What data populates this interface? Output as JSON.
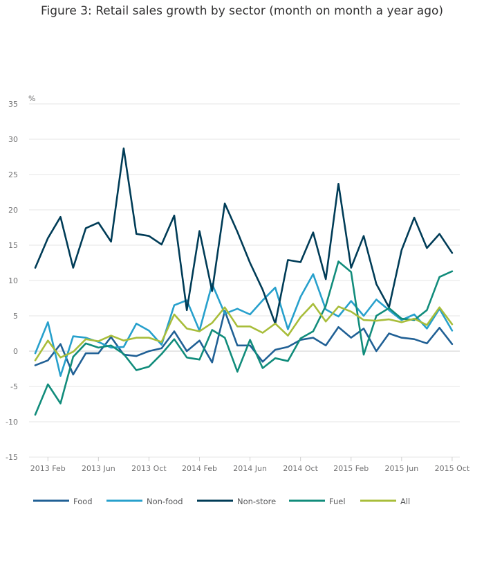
{
  "colors": {
    "Food": "#206095",
    "Non-food": "#27a0cc",
    "Non-store": "#003c57",
    "Fuel": "#118c7b",
    "All": "#a8bd3a",
    "grid": "#e5e5e5",
    "axis": "#cfcfcf"
  },
  "chart_data": {
    "type": "line",
    "title": "Figure 3: Retail sales growth by sector (month on month a year ago)",
    "ylabel": "%",
    "ylim": [
      -15,
      35
    ],
    "yticks": [
      35,
      30,
      25,
      20,
      15,
      10,
      5,
      0,
      -5,
      -10,
      -15
    ],
    "ytick_labels": [
      "35",
      "30",
      "25",
      "20",
      "15",
      "10",
      "5",
      "0",
      "-5",
      "-10",
      "-15"
    ],
    "x": [
      "2013 Jan",
      "2013 Feb",
      "2013 Mar",
      "2013 Apr",
      "2013 May",
      "2013 Jun",
      "2013 Jul",
      "2013 Aug",
      "2013 Sep",
      "2013 Oct",
      "2013 Nov",
      "2013 Dec",
      "2014 Jan",
      "2014 Feb",
      "2014 Mar",
      "2014 Apr",
      "2014 May",
      "2014 Jun",
      "2014 Jul",
      "2014 Aug",
      "2014 Sep",
      "2014 Oct",
      "2014 Nov",
      "2014 Dec",
      "2015 Jan",
      "2015 Feb",
      "2015 Mar",
      "2015 Apr",
      "2015 May",
      "2015 Jun",
      "2015 Jul",
      "2015 Aug",
      "2015 Sep",
      "2015 Oct"
    ],
    "xticks": [
      "2013 Feb",
      "2013 Jun",
      "2013 Oct",
      "2014 Feb",
      "2014 Jun",
      "2014 Oct",
      "2015 Feb",
      "2015 Jun",
      "2015 Oct"
    ],
    "series": [
      {
        "name": "Food",
        "values": [
          -2.0,
          -1.3,
          1.0,
          -3.3,
          -0.3,
          -0.3,
          2.0,
          -0.5,
          -0.7,
          0.0,
          0.4,
          2.8,
          0.0,
          1.5,
          -1.6,
          5.7,
          0.8,
          0.8,
          -1.5,
          0.2,
          0.6,
          1.6,
          1.9,
          0.8,
          3.4,
          1.9,
          3.2,
          0.0,
          2.5,
          1.9,
          1.7,
          1.1,
          3.3,
          1.0
        ]
      },
      {
        "name": "Non-food",
        "values": [
          -0.3,
          4.1,
          -3.5,
          2.1,
          1.9,
          1.3,
          0.5,
          0.6,
          3.9,
          2.9,
          0.9,
          6.5,
          7.2,
          2.9,
          9.5,
          5.3,
          6.0,
          5.2,
          7.2,
          9.0,
          3.1,
          7.7,
          10.9,
          5.9,
          4.9,
          7.1,
          5.0,
          7.3,
          5.8,
          4.4,
          5.2,
          3.2,
          6.0,
          2.9
        ]
      },
      {
        "name": "Non-store",
        "values": [
          11.8,
          16.0,
          19.0,
          11.8,
          17.4,
          18.2,
          15.5,
          28.7,
          16.6,
          16.3,
          15.1,
          19.2,
          5.8,
          17.0,
          8.5,
          20.9,
          16.9,
          12.5,
          8.7,
          3.9,
          12.9,
          12.6,
          16.8,
          10.2,
          23.7,
          11.8,
          16.3,
          9.5,
          6.2,
          14.3,
          18.9,
          14.6,
          16.6,
          13.9
        ]
      },
      {
        "name": "Fuel",
        "values": [
          -9.0,
          -4.7,
          -7.4,
          -0.8,
          1.1,
          0.5,
          0.8,
          -0.4,
          -2.7,
          -2.2,
          -0.4,
          1.7,
          -0.9,
          -1.2,
          3.0,
          1.9,
          -2.9,
          1.6,
          -2.4,
          -1.0,
          -1.4,
          1.8,
          2.8,
          6.4,
          12.7,
          11.2,
          -0.5,
          5.0,
          6.1,
          4.6,
          4.4,
          5.8,
          10.5,
          11.3
        ]
      },
      {
        "name": "All",
        "values": [
          -1.3,
          1.5,
          -0.9,
          -0.1,
          1.7,
          1.4,
          2.2,
          1.5,
          1.9,
          1.9,
          1.3,
          5.2,
          3.2,
          2.8,
          4.0,
          6.2,
          3.5,
          3.5,
          2.6,
          3.9,
          2.2,
          4.8,
          6.7,
          4.2,
          6.3,
          5.6,
          4.4,
          4.3,
          4.5,
          4.1,
          4.6,
          3.7,
          6.2,
          3.8
        ]
      }
    ]
  }
}
